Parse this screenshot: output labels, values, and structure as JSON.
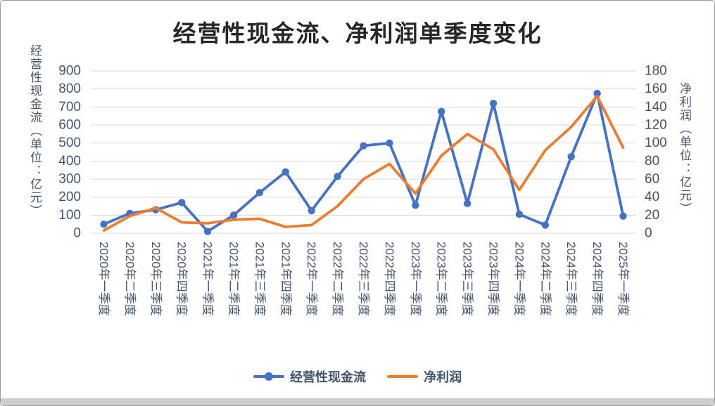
{
  "chart_data": {
    "type": "line",
    "title": "经营性现金流、净利润单季度变化",
    "categories": [
      "2020年一季度",
      "2020年二季度",
      "2020年三季度",
      "2020年四季度",
      "2021年一季度",
      "2021年二季度",
      "2021年三季度",
      "2021年四季度",
      "2022年一季度",
      "2022年二季度",
      "2022年三季度",
      "2022年四季度",
      "2023年一季度",
      "2023年二季度",
      "2023年三季度",
      "2023年四季度",
      "2024年一季度",
      "2024年二季度",
      "2024年三季度",
      "2024年四季度",
      "2025年一季度"
    ],
    "series": [
      {
        "name": "经营性现金流",
        "axis": "left",
        "color": "#4472C4",
        "marker": true,
        "values": [
          50,
          110,
          130,
          170,
          10,
          100,
          225,
          340,
          125,
          315,
          485,
          500,
          155,
          675,
          165,
          720,
          105,
          45,
          425,
          775,
          95
        ]
      },
      {
        "name": "净利润",
        "axis": "right",
        "color": "#ED7D31",
        "marker": false,
        "values": [
          3,
          19,
          28,
          12,
          11,
          15,
          16,
          7,
          9,
          30,
          60,
          77,
          44,
          86,
          110,
          93,
          48,
          92,
          118,
          152,
          95
        ]
      }
    ],
    "left_axis": {
      "title": "经营性现金流（单位：亿元）",
      "min": 0,
      "max": 900,
      "step": 100
    },
    "right_axis": {
      "title": "净利润（单位：亿元）",
      "min": 0,
      "max": 180,
      "step": 20
    },
    "legend_position": "bottom",
    "grid": "horizontal",
    "styles": {
      "grid_color": "#D9D9D9",
      "tick_color": "#44546A",
      "title_color": "#262626",
      "scrollbar_color": "#cfcfcf"
    }
  }
}
